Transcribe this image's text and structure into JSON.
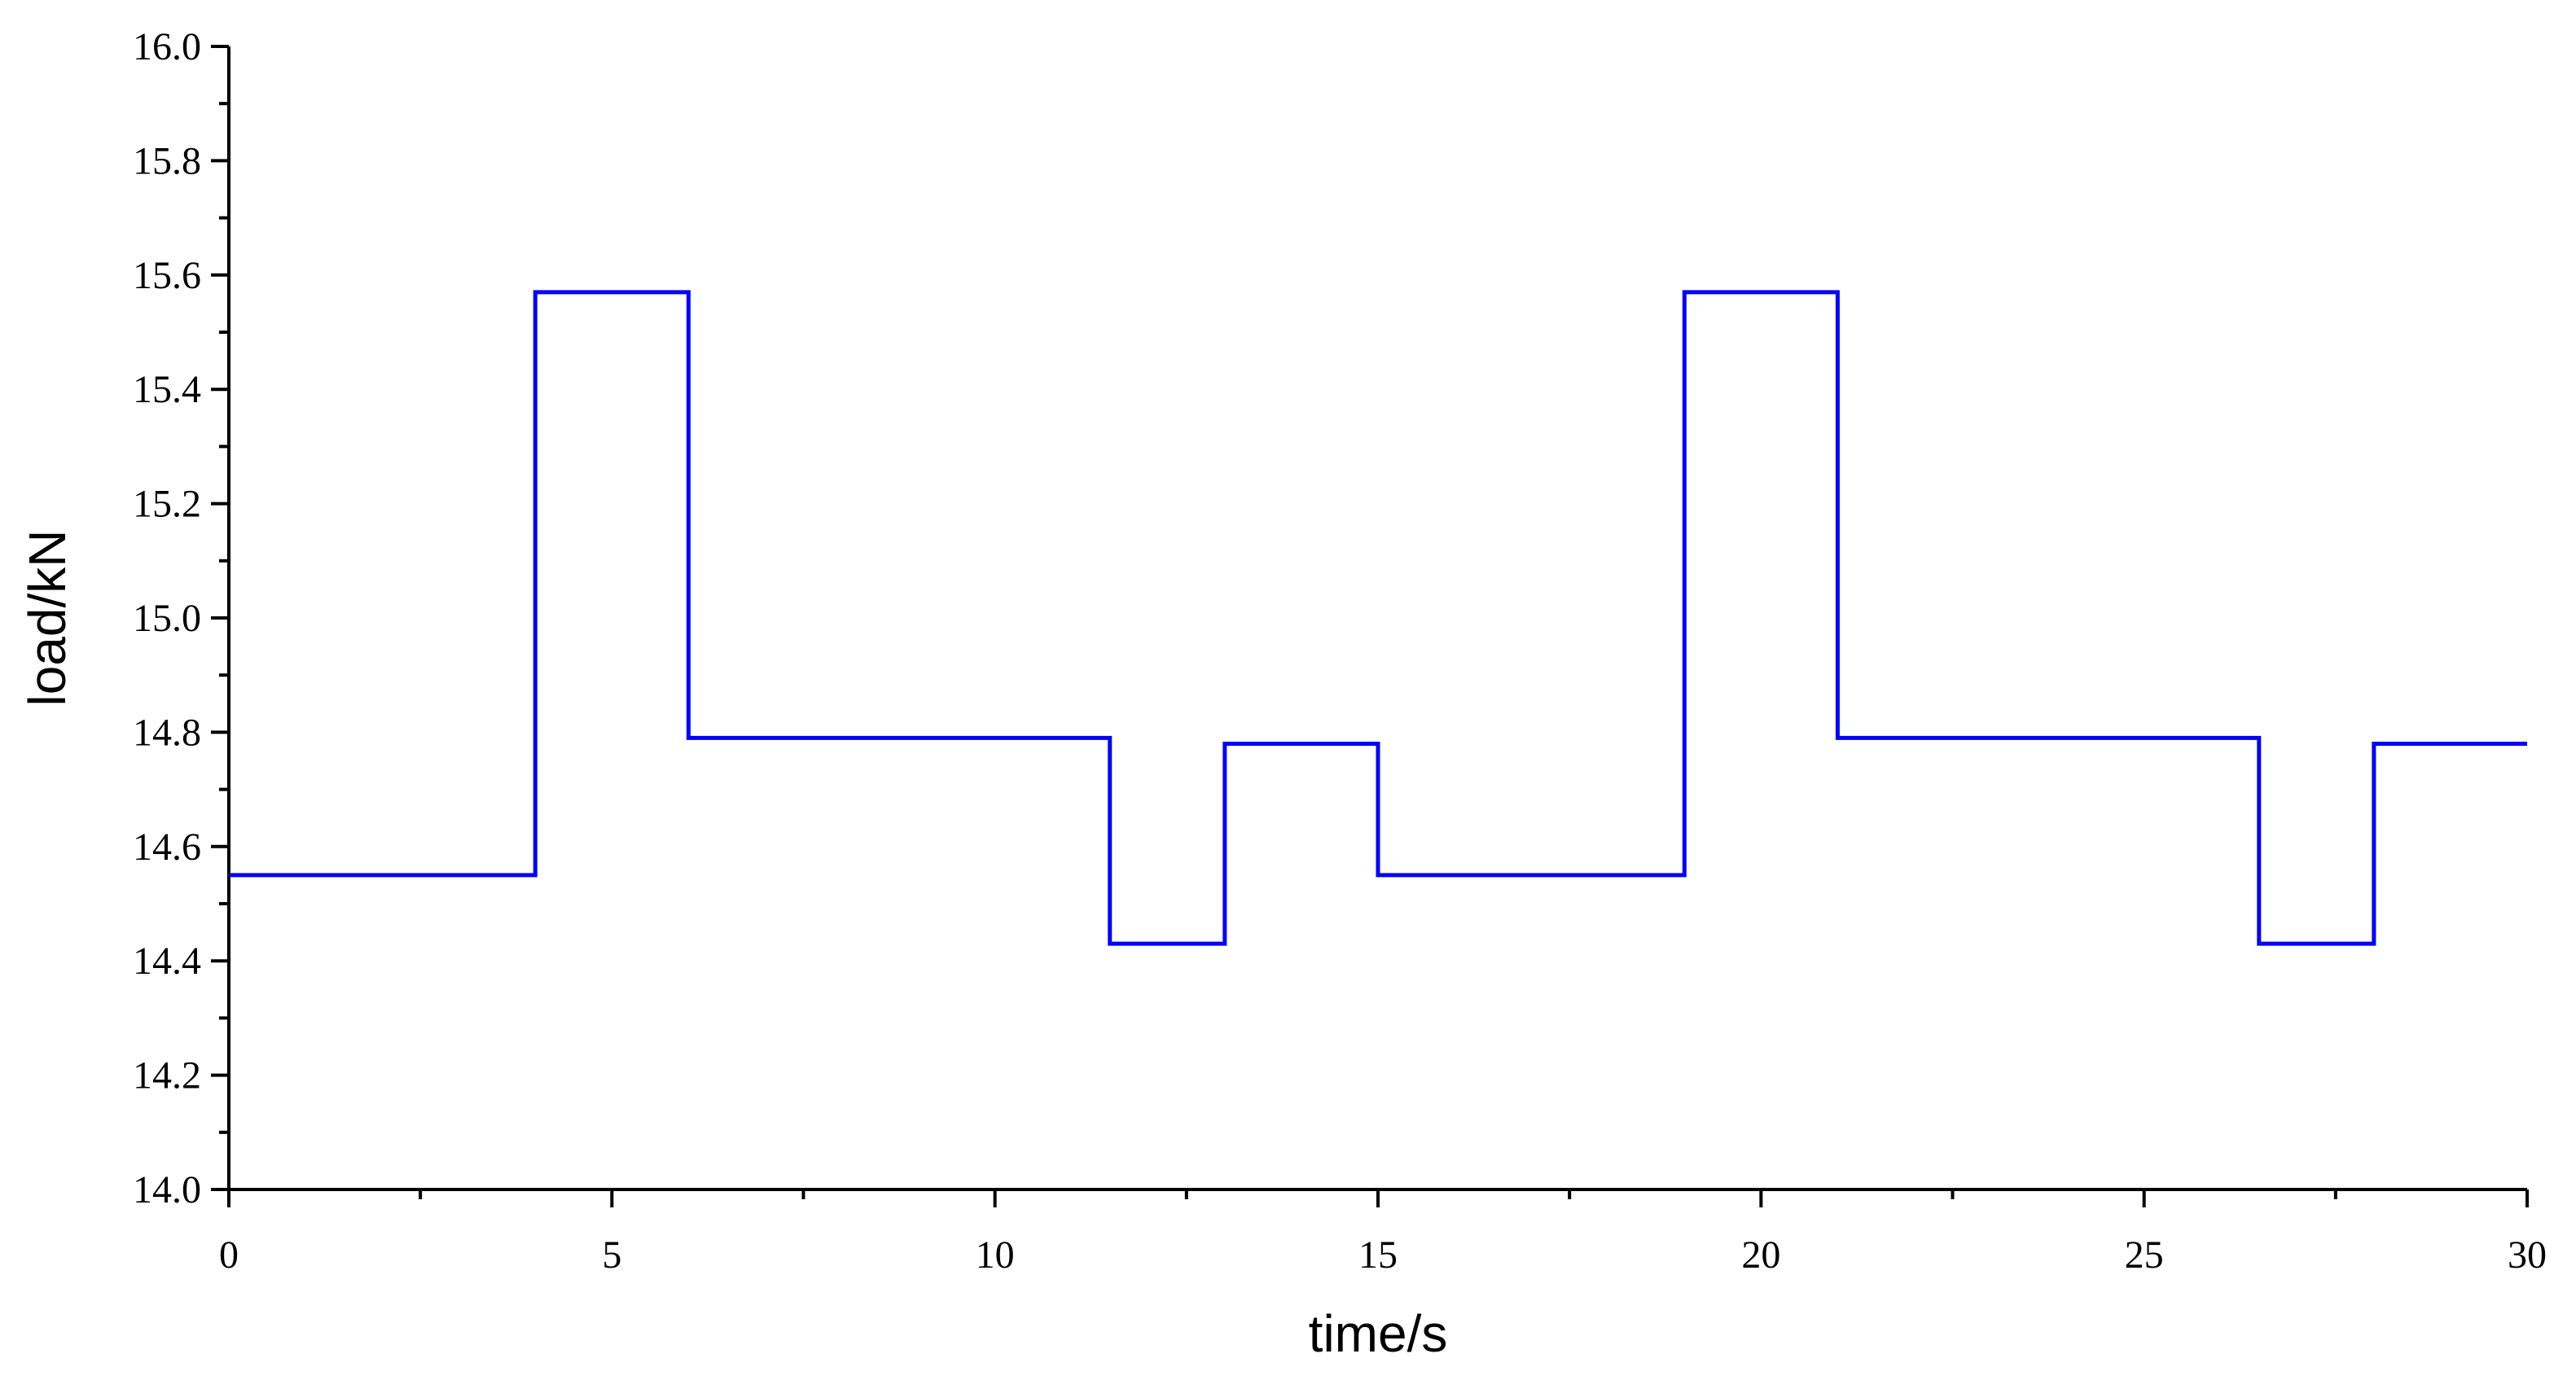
{
  "chart_data": {
    "type": "line",
    "xlabel": "time/s",
    "ylabel": "load/kN",
    "series": [
      {
        "color": "#0000ff",
        "x": [
          0,
          4,
          4,
          6,
          6,
          11.5,
          11.5,
          13,
          13,
          15,
          15,
          19,
          19,
          21,
          21,
          26.5,
          26.5,
          28,
          28,
          30
        ],
        "values": [
          14.55,
          14.55,
          15.57,
          15.57,
          14.79,
          14.79,
          14.43,
          14.43,
          14.78,
          14.78,
          14.55,
          14.55,
          15.57,
          15.57,
          14.79,
          14.79,
          14.43,
          14.43,
          14.78,
          14.78
        ]
      }
    ],
    "xlim": [
      0,
      30
    ],
    "xticks": [
      0,
      5,
      10,
      15,
      20,
      25,
      30
    ],
    "minor_xticks": [
      2.5,
      7.5,
      12.5,
      17.5,
      22.5,
      27.5
    ],
    "ylim": [
      14,
      16
    ],
    "yticks": [
      {
        "value": 14,
        "label": "14.0"
      },
      14.2,
      14.4,
      14.6,
      14.8,
      {
        "value": 15,
        "label": "15.0"
      },
      15.2,
      15.4,
      15.6,
      15.8,
      {
        "value": 16,
        "label": "16.0"
      }
    ],
    "minor_yticks": [
      14.1,
      14.3,
      14.5,
      14.7,
      14.9,
      15.1,
      15.3,
      15.5,
      15.7,
      15.9
    ],
    "grid": false
  }
}
